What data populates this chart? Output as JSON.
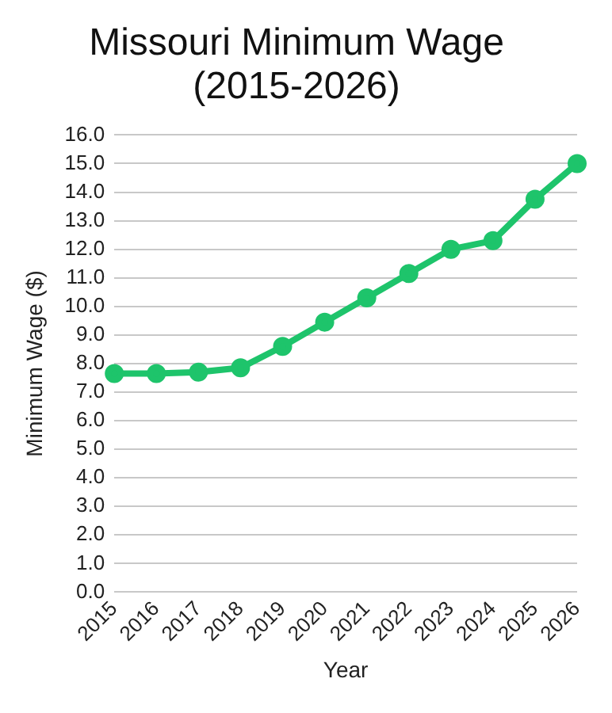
{
  "chart_data": {
    "type": "line",
    "title": "Missouri Minimum Wage (2015-2026)",
    "xlabel": "Year",
    "ylabel": "Minimum Wage ($)",
    "categories": [
      "2015",
      "2016",
      "2017",
      "2018",
      "2019",
      "2020",
      "2021",
      "2022",
      "2023",
      "2024",
      "2025",
      "2026"
    ],
    "series": [
      {
        "color": "#1ec46b",
        "values": [
          7.65,
          7.65,
          7.7,
          7.85,
          8.6,
          9.45,
          10.3,
          11.15,
          12.0,
          12.3,
          13.75,
          15.0
        ]
      }
    ],
    "ylim": [
      0,
      16
    ],
    "yticks": [
      {
        "value": 0,
        "label": "0.0"
      },
      {
        "value": 1,
        "label": "1.0"
      },
      {
        "value": 2,
        "label": "2.0"
      },
      {
        "value": 3,
        "label": "3.0"
      },
      {
        "value": 4,
        "label": "4.0"
      },
      {
        "value": 5,
        "label": "5.0"
      },
      {
        "value": 6,
        "label": "6.0"
      },
      {
        "value": 7,
        "label": "7.0"
      },
      {
        "value": 8,
        "label": "8.0"
      },
      {
        "value": 9,
        "label": "9.0"
      },
      {
        "value": 10,
        "label": "10.0"
      },
      {
        "value": 11,
        "label": "11.0"
      },
      {
        "value": 12,
        "label": "12.0"
      },
      {
        "value": 13,
        "label": "13.0"
      },
      {
        "value": 14,
        "label": "14.0"
      },
      {
        "value": 15,
        "label": "15.0"
      },
      {
        "value": 16,
        "label": "16.0"
      }
    ],
    "grid": "y",
    "legend": false,
    "marker": "circle",
    "line_style": "solid"
  }
}
